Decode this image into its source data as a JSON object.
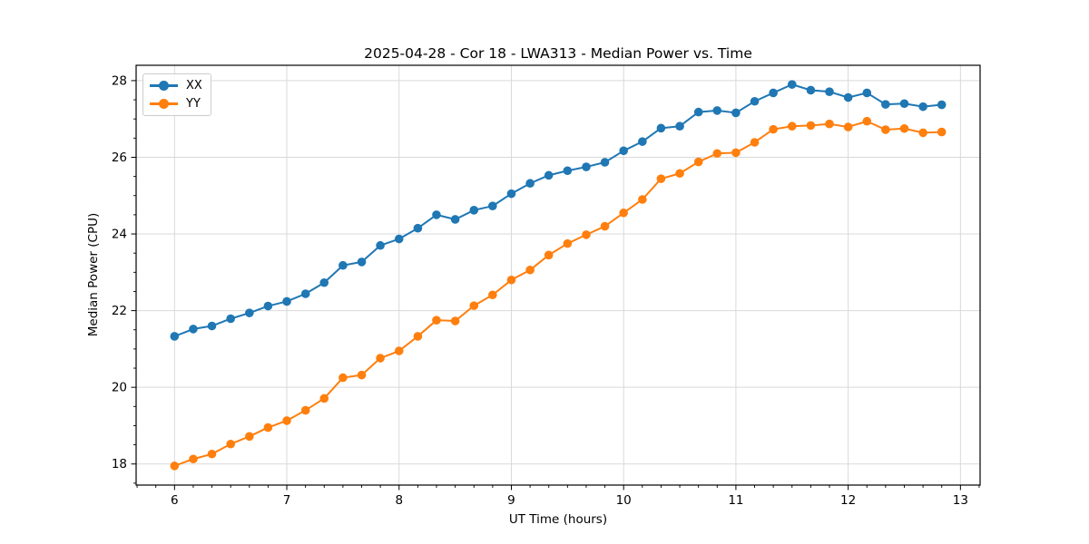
{
  "chart_data": {
    "type": "line",
    "title": "2025-04-28 - Cor 18 - LWA313 - Median Power vs. Time",
    "xlabel": "UT Time (hours)",
    "ylabel": "Median Power (CPU)",
    "grid": true,
    "grid_color": "#d9d9d9",
    "legend_position": "upper left",
    "marker": "circle",
    "xlim": [
      5.658,
      13.175
    ],
    "ylim": [
      17.45,
      28.4
    ],
    "xticks": [
      6,
      7,
      8,
      9,
      10,
      11,
      12,
      13
    ],
    "yticks": [
      18,
      20,
      22,
      24,
      26,
      28
    ],
    "x_minor_step": 0.1667,
    "y_minor_step": 0.5,
    "x": [
      6.0,
      6.167,
      6.333,
      6.5,
      6.667,
      6.833,
      7.0,
      7.167,
      7.333,
      7.5,
      7.667,
      7.833,
      8.0,
      8.167,
      8.333,
      8.5,
      8.667,
      8.833,
      9.0,
      9.167,
      9.333,
      9.5,
      9.667,
      9.833,
      10.0,
      10.167,
      10.333,
      10.5,
      10.667,
      10.833,
      11.0,
      11.167,
      11.333,
      11.5,
      11.667,
      11.833,
      12.0,
      12.167,
      12.333,
      12.5,
      12.667,
      12.833
    ],
    "series": [
      {
        "name": "XX",
        "color": "#1f77b4",
        "values": [
          21.33,
          21.52,
          21.6,
          21.79,
          21.94,
          22.12,
          22.24,
          22.44,
          22.73,
          23.18,
          23.27,
          23.7,
          23.87,
          24.15,
          24.5,
          24.38,
          24.62,
          24.73,
          25.05,
          25.32,
          25.53,
          25.65,
          25.75,
          25.87,
          26.17,
          26.41,
          26.76,
          26.81,
          27.18,
          27.22,
          27.16,
          27.46,
          27.68,
          27.9,
          27.75,
          27.71,
          27.56,
          27.68,
          27.38,
          27.4,
          27.32,
          27.37
        ]
      },
      {
        "name": "YY",
        "color": "#ff7f0e",
        "values": [
          17.95,
          18.13,
          18.26,
          18.52,
          18.72,
          18.95,
          19.13,
          19.4,
          19.71,
          20.25,
          20.32,
          20.76,
          20.95,
          21.33,
          21.75,
          21.73,
          22.13,
          22.41,
          22.8,
          23.06,
          23.45,
          23.75,
          23.98,
          24.2,
          24.55,
          24.9,
          25.44,
          25.58,
          25.88,
          26.1,
          26.12,
          26.39,
          26.73,
          26.81,
          26.83,
          26.87,
          26.79,
          26.94,
          26.72,
          26.75,
          26.64,
          26.66
        ]
      }
    ]
  }
}
